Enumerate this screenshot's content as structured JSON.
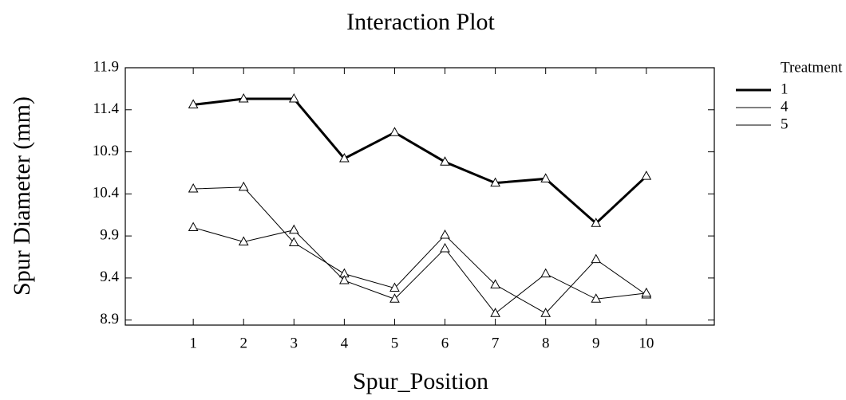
{
  "chart_data": {
    "type": "line",
    "title": "Interaction Plot",
    "x_label": "Spur_Position",
    "y_label": "Spur Diameter (mm)",
    "x": [
      1,
      2,
      3,
      4,
      5,
      6,
      7,
      8,
      9,
      10
    ],
    "series": [
      {
        "name": "1",
        "color": "#000000",
        "line_width": 3,
        "values": [
          11.46,
          11.53,
          11.53,
          10.82,
          11.13,
          10.78,
          10.53,
          10.58,
          10.05,
          10.61
        ]
      },
      {
        "name": "4",
        "color": "#000000",
        "line_width": 1,
        "values": [
          10.46,
          10.48,
          9.82,
          9.45,
          9.28,
          9.91,
          9.32,
          8.98,
          9.62,
          9.2
        ]
      },
      {
        "name": "5",
        "color": "#000000",
        "line_width": 1,
        "values": [
          10.0,
          9.83,
          9.97,
          9.37,
          9.15,
          9.75,
          8.98,
          9.45,
          9.15,
          9.22
        ]
      }
    ],
    "legend_title": "Treatment",
    "legend": "right",
    "marker": "triangle",
    "xlim": [
      -0.35,
      11.35
    ],
    "xticks": [
      1,
      2,
      3,
      4,
      5,
      6,
      7,
      8,
      9,
      10
    ],
    "ylim": [
      8.84,
      11.9
    ],
    "yticks": [
      8.9,
      9.4,
      9.9,
      10.4,
      10.9,
      11.4,
      11.9
    ]
  }
}
